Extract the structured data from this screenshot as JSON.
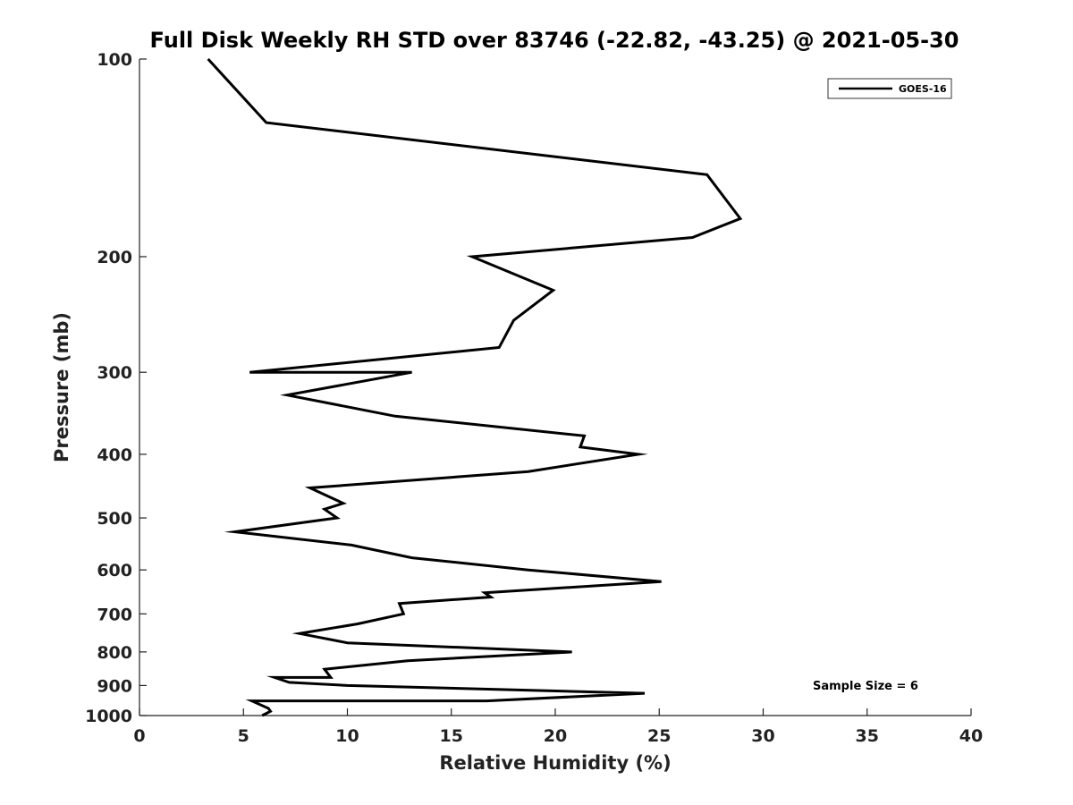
{
  "chart_data": {
    "type": "line",
    "title": "Full Disk Weekly RH STD over 83746 (-22.82, -43.25) @ 2021-05-30",
    "xlabel": "Relative Humidity (%)",
    "ylabel": "Pressure (mb)",
    "xlim": [
      0,
      40
    ],
    "ylim": [
      100,
      1000
    ],
    "y_scale": "log",
    "y_reversed": true,
    "x_ticks": [
      "0",
      "5",
      "10",
      "15",
      "20",
      "25",
      "30",
      "35",
      "40"
    ],
    "y_ticks": [
      "100",
      "200",
      "300",
      "400",
      "500",
      "600",
      "700",
      "800",
      "900",
      "1000"
    ],
    "grid": false,
    "legend_position": "top-right",
    "annotation": "Sample Size = 6",
    "series": [
      {
        "name": "GOES-16",
        "color": "#000000",
        "points": [
          [
            3.3,
            100
          ],
          [
            6.1,
            125
          ],
          [
            27.3,
            150
          ],
          [
            28.9,
            175
          ],
          [
            26.6,
            187
          ],
          [
            16.0,
            200
          ],
          [
            19.9,
            225
          ],
          [
            18.0,
            250
          ],
          [
            17.3,
            275
          ],
          [
            5.3,
            300
          ],
          [
            13.1,
            300
          ],
          [
            7.1,
            325
          ],
          [
            12.3,
            350
          ],
          [
            21.4,
            375
          ],
          [
            21.2,
            390
          ],
          [
            24.0,
            400
          ],
          [
            18.7,
            425
          ],
          [
            8.2,
            450
          ],
          [
            9.8,
            475
          ],
          [
            8.9,
            485
          ],
          [
            9.5,
            500
          ],
          [
            4.6,
            525
          ],
          [
            10.2,
            550
          ],
          [
            13.1,
            575
          ],
          [
            18.7,
            600
          ],
          [
            25.1,
            625
          ],
          [
            16.6,
            650
          ],
          [
            16.9,
            660
          ],
          [
            12.5,
            675
          ],
          [
            12.7,
            700
          ],
          [
            10.5,
            725
          ],
          [
            7.7,
            750
          ],
          [
            10.0,
            775
          ],
          [
            20.8,
            800
          ],
          [
            12.9,
            825
          ],
          [
            8.9,
            850
          ],
          [
            9.2,
            875
          ],
          [
            6.5,
            875
          ],
          [
            7.2,
            890
          ],
          [
            10.0,
            900
          ],
          [
            24.3,
            925
          ],
          [
            16.7,
            950
          ],
          [
            5.4,
            950
          ],
          [
            6.2,
            975
          ],
          [
            6.3,
            985
          ],
          [
            5.9,
            1000
          ]
        ]
      }
    ]
  }
}
